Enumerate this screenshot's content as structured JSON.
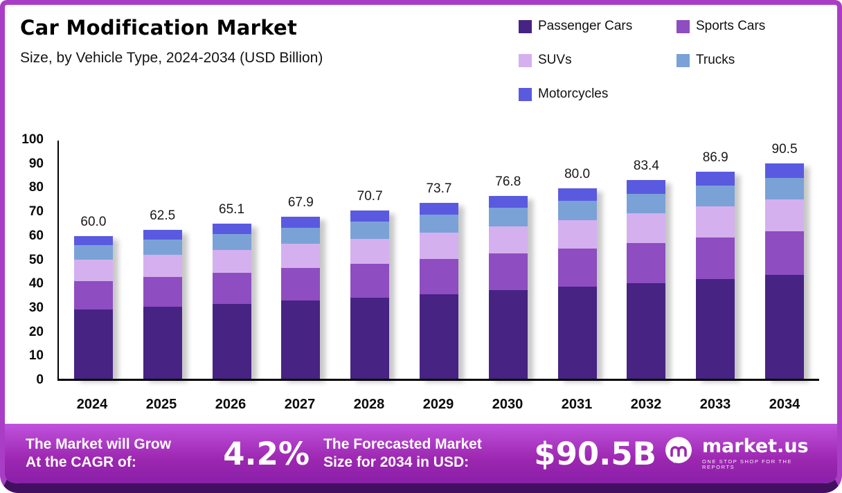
{
  "chart_data": {
    "type": "bar",
    "stacked": true,
    "title": "Car Modification Market",
    "subtitle": "Size, by Vehicle Type, 2024-2034 (USD Billion)",
    "categories": [
      "2024",
      "2025",
      "2026",
      "2027",
      "2028",
      "2029",
      "2030",
      "2031",
      "2032",
      "2033",
      "2034"
    ],
    "totals": [
      60.0,
      62.5,
      65.1,
      67.9,
      70.7,
      73.7,
      76.8,
      80.0,
      83.4,
      86.9,
      90.5
    ],
    "total_labels": [
      "60.0",
      "62.5",
      "65.1",
      "67.9",
      "70.7",
      "73.7",
      "76.8",
      "80.0",
      "83.4",
      "86.9",
      "90.5"
    ],
    "series": [
      {
        "name": "Passenger Cars",
        "color": "#472383",
        "values": [
          29.0,
          30.2,
          31.4,
          32.8,
          34.1,
          35.6,
          37.1,
          38.6,
          40.2,
          41.9,
          43.7
        ]
      },
      {
        "name": "Sports Cars",
        "color": "#8e4dc1",
        "values": [
          12.0,
          12.5,
          13.0,
          13.6,
          14.1,
          14.7,
          15.4,
          16.0,
          16.7,
          17.4,
          18.1
        ]
      },
      {
        "name": "SUVs",
        "color": "#d5b0ee",
        "values": [
          9.0,
          9.4,
          9.8,
          10.2,
          10.6,
          11.1,
          11.5,
          12.0,
          12.5,
          13.0,
          13.6
        ]
      },
      {
        "name": "Trucks",
        "color": "#7ba2d6",
        "values": [
          6.0,
          6.3,
          6.5,
          6.8,
          7.1,
          7.4,
          7.7,
          8.0,
          8.3,
          8.7,
          9.0
        ]
      },
      {
        "name": "Motorcycles",
        "color": "#5a5ae0",
        "values": [
          4.0,
          4.1,
          4.4,
          4.5,
          4.8,
          4.9,
          5.1,
          5.4,
          5.7,
          5.9,
          6.1
        ]
      }
    ],
    "ylim": [
      0,
      100
    ],
    "yticks": [
      100,
      90,
      80,
      70,
      60,
      50,
      40,
      30,
      20,
      10,
      0
    ],
    "grid": false,
    "legend_position": "top-right"
  },
  "banner": {
    "grow_label_line1": "The Market will Grow",
    "grow_label_line2": "At the CAGR of:",
    "cagr": "4.2%",
    "forecast_label_line1": "The Forecasted Market",
    "forecast_label_line2": "Size for 2034 in USD:",
    "forecast_value": "$90.5B",
    "brand_name": "market.us",
    "brand_tagline": "ONE STOP SHOP FOR THE REPORTS"
  },
  "colors": {
    "frame_border": "#a93dc5",
    "frame_bottom": "#431061",
    "banner_gradient_top": "#c052dd",
    "banner_gradient_bottom": "#8a1fa9",
    "axis": "#000000",
    "text_dark": "#111111",
    "banner_text": "#ffffff"
  }
}
